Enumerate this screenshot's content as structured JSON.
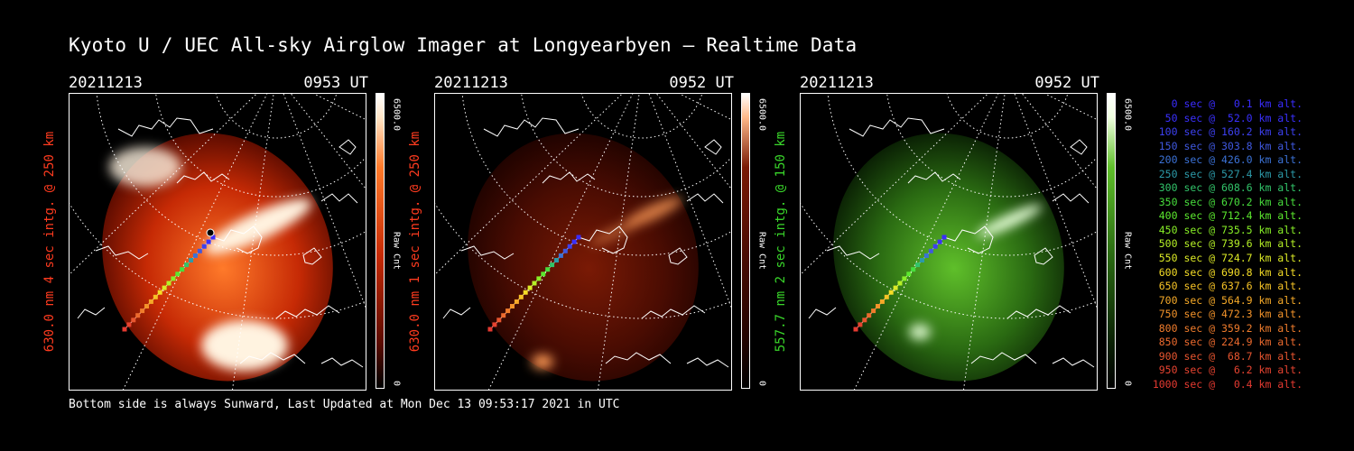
{
  "title": "Kyoto U / UEC All-sky Airglow Imager at Longyearbyen — Realtime Data",
  "footer": "Bottom side is always Sunward, Last Updated at Mon Dec 13 09:53:17 2021 in UTC",
  "panels": [
    {
      "date": "20211213",
      "time": "0953 UT",
      "label": "630.0 nm 4 sec intg. @ 250 km",
      "cbar_max": "6500.0",
      "cbar_unit": "Raw Cnt",
      "cbar_min": "0",
      "theme": "red",
      "label_color": "#ff3b1f"
    },
    {
      "date": "20211213",
      "time": "0952 UT",
      "label": "630.0 nm 1 sec intg. @ 250 km",
      "cbar_max": "6500.0",
      "cbar_unit": "Raw Cnt",
      "cbar_min": "0",
      "theme": "darkred",
      "label_color": "#ff3b1f"
    },
    {
      "date": "20211213",
      "time": "0952 UT",
      "label": "557.7 nm 2 sec intg. @ 150 km",
      "cbar_max": "6500.0",
      "cbar_unit": "Raw Cnt",
      "cbar_min": "0",
      "theme": "green",
      "label_color": "#39d62a"
    }
  ],
  "altitudes": [
    {
      "text": "0 sec @   0.1 km alt.",
      "color": "#3a2cff"
    },
    {
      "text": "50 sec @  52.0 km alt.",
      "color": "#3a30ff"
    },
    {
      "text": "100 sec @ 160.2 km alt.",
      "color": "#3d40f0"
    },
    {
      "text": "150 sec @ 303.8 km alt.",
      "color": "#3f58e0"
    },
    {
      "text": "200 sec @ 426.0 km alt.",
      "color": "#3b72d6"
    },
    {
      "text": "250 sec @ 527.4 km alt.",
      "color": "#2c9aa9"
    },
    {
      "text": "300 sec @ 608.6 km alt.",
      "color": "#32c46a"
    },
    {
      "text": "350 sec @ 670.2 km alt.",
      "color": "#47dd3c"
    },
    {
      "text": "400 sec @ 712.4 km alt.",
      "color": "#5ce92e"
    },
    {
      "text": "450 sec @ 735.5 km alt.",
      "color": "#88ef27"
    },
    {
      "text": "500 sec @ 739.6 km alt.",
      "color": "#b5f026"
    },
    {
      "text": "550 sec @ 724.7 km alt.",
      "color": "#dcea26"
    },
    {
      "text": "600 sec @ 690.8 km alt.",
      "color": "#f4dc26"
    },
    {
      "text": "650 sec @ 637.6 km alt.",
      "color": "#f7c326"
    },
    {
      "text": "700 sec @ 564.9 km alt.",
      "color": "#f5a928"
    },
    {
      "text": "750 sec @ 472.3 km alt.",
      "color": "#f3932a"
    },
    {
      "text": "800 sec @ 359.2 km alt.",
      "color": "#f07c2c"
    },
    {
      "text": "850 sec @ 224.9 km alt.",
      "color": "#ec6a2e"
    },
    {
      "text": "900 sec @  68.7 km alt.",
      "color": "#e8552f"
    },
    {
      "text": "950 sec @   6.2 km alt.",
      "color": "#e64330"
    },
    {
      "text": "1000 sec @   0.4 km alt.",
      "color": "#e53a31"
    }
  ]
}
